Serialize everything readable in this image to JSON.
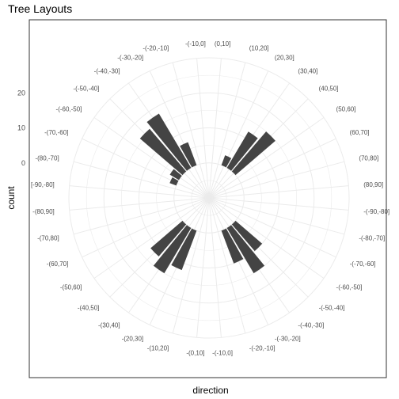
{
  "chart_data": {
    "type": "bar",
    "coord": "polar",
    "title": "Tree Layouts",
    "xlabel": "direction",
    "ylabel": "count",
    "y_ticks": [
      0,
      10,
      20
    ],
    "ylim": [
      -10,
      30
    ],
    "grid": true,
    "panel_border": true,
    "categories": [
      "(0,10]",
      "(10,20]",
      "(20,30]",
      "(30,40]",
      "(40,50]",
      "(50,60]",
      "(60,70]",
      "(70,80]",
      "(80,90]",
      "-(-90,-80]",
      "-(-80,-70]",
      "-(-70,-60]",
      "-(-60,-50]",
      "-(-50,-40]",
      "-(-40,-30]",
      "-(-30,-20]",
      "-(-20,-10]",
      "-(-10,0]",
      "-(0,10]",
      "-(10,20]",
      "-(20,30]",
      "-(30,40]",
      "-(40,50]",
      "-(50,60]",
      "-(60,70]",
      "-(70,80]",
      "-(80,90]",
      "[-90,-80]",
      "-(80,-70]",
      "-(70,-60]",
      "-(-60,-50]",
      "-(-50,-40]",
      "-(-40,-30]",
      "-(-30,-20]",
      "-(-20,-10]",
      "-(-10,0]"
    ],
    "values": [
      0,
      0,
      3,
      12,
      15,
      0,
      0,
      0,
      0,
      0,
      0,
      0,
      0,
      10,
      15,
      10,
      0,
      0,
      0,
      0,
      12,
      15,
      12,
      0,
      0,
      0,
      0,
      0,
      0,
      2,
      3,
      16,
      18,
      7,
      0,
      0
    ],
    "bar_color": "#444444",
    "grid_color": "#ebebeb",
    "border_color": "#333333"
  }
}
